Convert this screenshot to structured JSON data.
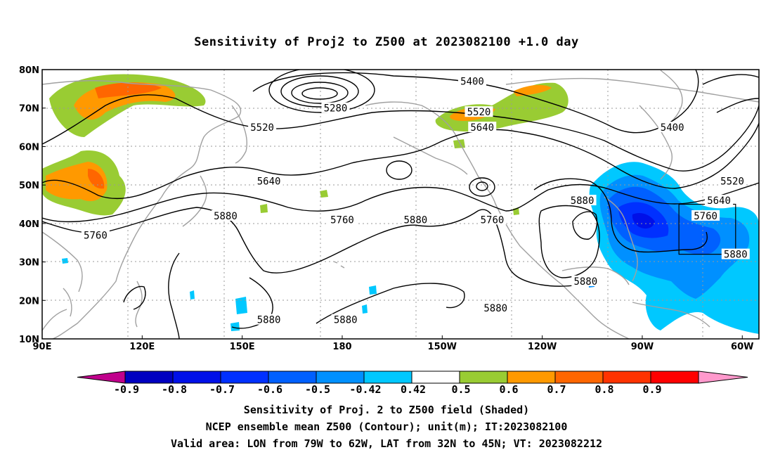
{
  "title": "Sensitivity of Proj2 to Z500 at 2023082100 +1.0 day",
  "map": {
    "lon_range": [
      90,
      305
    ],
    "lat_range": [
      10,
      80
    ],
    "lon_ticks": [
      {
        "lon": 90,
        "label": "90E"
      },
      {
        "lon": 120,
        "label": "120E"
      },
      {
        "lon": 150,
        "label": "150E"
      },
      {
        "lon": 180,
        "label": "180"
      },
      {
        "lon": 210,
        "label": "150W"
      },
      {
        "lon": 240,
        "label": "120W"
      },
      {
        "lon": 270,
        "label": "90W"
      },
      {
        "lon": 300,
        "label": "60W"
      }
    ],
    "lat_ticks": [
      {
        "lat": 80,
        "label": "80N"
      },
      {
        "lat": 70,
        "label": "70N"
      },
      {
        "lat": 60,
        "label": "60N"
      },
      {
        "lat": 50,
        "label": "50N"
      },
      {
        "lat": 40,
        "label": "40N"
      },
      {
        "lat": 30,
        "label": "30N"
      },
      {
        "lat": 20,
        "label": "20N"
      },
      {
        "lat": 10,
        "label": "10N"
      }
    ],
    "contour_labels": [
      {
        "text": "5400",
        "lon": 219,
        "lat": 77
      },
      {
        "text": "5280",
        "lon": 178,
        "lat": 70
      },
      {
        "text": "5520",
        "lon": 221,
        "lat": 69
      },
      {
        "text": "5640",
        "lon": 222,
        "lat": 65
      },
      {
        "text": "5520",
        "lon": 156,
        "lat": 65
      },
      {
        "text": "5400",
        "lon": 279,
        "lat": 65
      },
      {
        "text": "5640",
        "lon": 158,
        "lat": 51
      },
      {
        "text": "5520",
        "lon": 297,
        "lat": 51
      },
      {
        "text": "5640",
        "lon": 293,
        "lat": 46
      },
      {
        "text": "5880",
        "lon": 252,
        "lat": 46
      },
      {
        "text": "5760",
        "lon": 289,
        "lat": 42
      },
      {
        "text": "5880",
        "lon": 145,
        "lat": 42
      },
      {
        "text": "5760",
        "lon": 180,
        "lat": 41
      },
      {
        "text": "5880",
        "lon": 202,
        "lat": 41
      },
      {
        "text": "5760",
        "lon": 225,
        "lat": 41
      },
      {
        "text": "5760",
        "lon": 106,
        "lat": 37
      },
      {
        "text": "5880",
        "lon": 298,
        "lat": 32
      },
      {
        "text": "5880",
        "lon": 253,
        "lat": 25
      },
      {
        "text": "5880",
        "lon": 226,
        "lat": 18
      },
      {
        "text": "5880",
        "lon": 158,
        "lat": 15
      },
      {
        "text": "5880",
        "lon": 181,
        "lat": 15
      }
    ],
    "valid_box": {
      "lon_min": 281,
      "lon_max": 298,
      "lat_min": 32,
      "lat_max": 45
    }
  },
  "colorbar": {
    "labels": [
      "-0.9",
      "-0.8",
      "-0.7",
      "-0.6",
      "-0.5",
      "-0.42",
      "0.42",
      "0.5",
      "0.6",
      "0.7",
      "0.8",
      "0.9"
    ],
    "colors": [
      "#0000c0",
      "#0010e8",
      "#0030ff",
      "#0060ff",
      "#0090ff",
      "#00c8ff",
      "#ffffff",
      "#99cc33",
      "#ff9900",
      "#ff6600",
      "#ff3300",
      "#ff0000"
    ],
    "low_arrow_color": "#c0008c",
    "high_arrow_color": "#ff99cc"
  },
  "captions": [
    "Sensitivity of Proj. 2 to Z500 field (Shaded)",
    "NCEP ensemble mean Z500 (Contour); unit(m); IT:2023082100",
    "Valid area: LON from 79W to 62W, LAT from 32N to 45N; VT: 2023082212"
  ],
  "colors": {
    "coastline": "#a0a0a0",
    "contour": "#000000",
    "grid": "#999999"
  }
}
